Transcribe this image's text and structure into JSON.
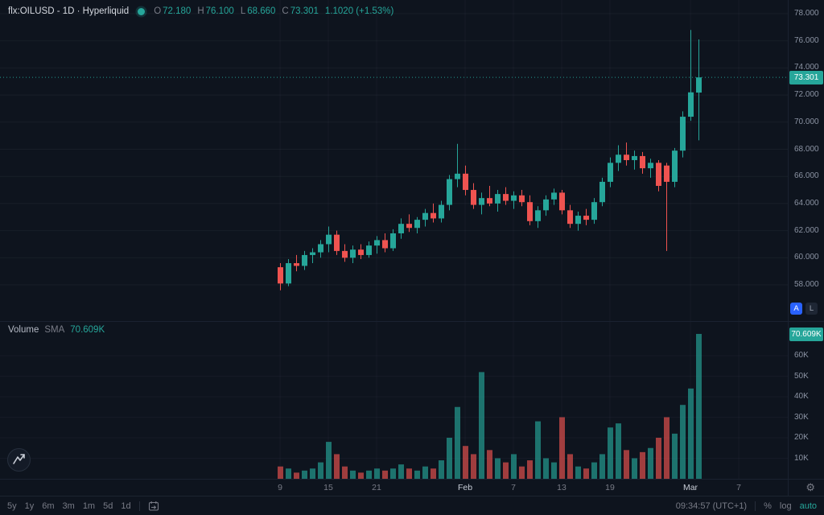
{
  "colors": {
    "up": "#26a69a",
    "down": "#ef5350",
    "accent_blue": "#2962ff",
    "text_gray": "#787b86",
    "text_light": "#d5d9e0"
  },
  "header": {
    "symbol_text": "flx:OILUSD - 1D · Hyperliquid",
    "o_label": "O",
    "o": "72.180",
    "h_label": "H",
    "h": "76.100",
    "l_label": "L",
    "l": "68.660",
    "c_label": "C",
    "c": "73.301",
    "change": "1.1020 (+1.53%)"
  },
  "volume_legend": {
    "title": "Volume",
    "sma_label": "SMA",
    "value": "70.609K"
  },
  "price_axis": {
    "labels": [
      "78.000",
      "76.000",
      "74.000",
      "72.000",
      "70.000",
      "68.000",
      "66.000",
      "64.000",
      "62.000",
      "60.000",
      "58.000"
    ],
    "badge": "73.301"
  },
  "volume_axis": {
    "labels": [
      "60K",
      "50K",
      "40K",
      "30K",
      "20K",
      "10K"
    ],
    "badge": "70.609K"
  },
  "time_axis": {
    "labels": [
      {
        "text": "9",
        "index": 0
      },
      {
        "text": "15",
        "index": 6
      },
      {
        "text": "21",
        "index": 12
      },
      {
        "text": "Feb",
        "index": 23
      },
      {
        "text": "7",
        "index": 29
      },
      {
        "text": "13",
        "index": 35
      },
      {
        "text": "19",
        "index": 41
      },
      {
        "text": "Mar",
        "index": 51
      },
      {
        "text": "7",
        "index": 57
      }
    ]
  },
  "badges": {
    "auto_scale": "A",
    "log_scale": "L"
  },
  "toolbar": {
    "ranges": [
      "5y",
      "1y",
      "6m",
      "3m",
      "1m",
      "5d",
      "1d"
    ],
    "clock": "09:34:57 (UTC+1)",
    "percent": "%",
    "log": "log",
    "auto": "auto"
  },
  "chart_data": {
    "type": "candlestick+volume",
    "title": "flx:OILUSD 1D Hyperliquid",
    "symbol": "flx:OILUSD",
    "interval": "1D",
    "exchange": "Hyperliquid",
    "price_range": [
      58,
      78
    ],
    "volume_range_k": [
      0,
      70.609
    ],
    "current_price": 73.301,
    "current_volume_k": 70.609,
    "x_start_date": "Jan 9",
    "candles_ohlc": [
      [
        59.3,
        59.6,
        57.6,
        58.1
      ],
      [
        58.1,
        59.9,
        57.9,
        59.6
      ],
      [
        59.6,
        60.2,
        59.0,
        59.4
      ],
      [
        59.4,
        60.5,
        59.1,
        60.2
      ],
      [
        60.2,
        60.7,
        59.6,
        60.4
      ],
      [
        60.4,
        61.3,
        60.0,
        61.0
      ],
      [
        61.0,
        62.3,
        60.4,
        61.7
      ],
      [
        61.7,
        62.0,
        60.2,
        60.5
      ],
      [
        60.5,
        61.0,
        59.7,
        60.0
      ],
      [
        60.0,
        60.9,
        59.6,
        60.6
      ],
      [
        60.6,
        61.0,
        59.9,
        60.2
      ],
      [
        60.2,
        61.2,
        60.0,
        60.9
      ],
      [
        60.9,
        61.6,
        60.3,
        61.3
      ],
      [
        61.3,
        61.8,
        60.4,
        60.7
      ],
      [
        60.7,
        62.1,
        60.5,
        61.8
      ],
      [
        61.8,
        62.9,
        61.4,
        62.5
      ],
      [
        62.5,
        63.2,
        61.9,
        62.2
      ],
      [
        62.2,
        63.0,
        61.8,
        62.8
      ],
      [
        62.8,
        63.6,
        62.3,
        63.3
      ],
      [
        63.3,
        64.0,
        62.6,
        62.9
      ],
      [
        62.9,
        64.2,
        62.6,
        63.9
      ],
      [
        63.9,
        66.1,
        63.5,
        65.8
      ],
      [
        65.8,
        68.4,
        65.2,
        66.2
      ],
      [
        66.2,
        66.8,
        64.6,
        65.0
      ],
      [
        65.0,
        65.5,
        63.6,
        63.9
      ],
      [
        63.9,
        64.8,
        63.2,
        64.4
      ],
      [
        64.4,
        65.3,
        63.8,
        64.0
      ],
      [
        64.0,
        65.0,
        63.4,
        64.7
      ],
      [
        64.7,
        65.2,
        63.9,
        64.2
      ],
      [
        64.2,
        64.9,
        63.6,
        64.6
      ],
      [
        64.6,
        65.0,
        63.8,
        64.1
      ],
      [
        64.1,
        64.6,
        62.4,
        62.7
      ],
      [
        62.7,
        63.8,
        62.2,
        63.5
      ],
      [
        63.5,
        64.6,
        63.1,
        64.3
      ],
      [
        64.3,
        65.1,
        63.9,
        64.8
      ],
      [
        64.8,
        65.0,
        63.2,
        63.5
      ],
      [
        63.5,
        63.9,
        62.2,
        62.5
      ],
      [
        62.5,
        63.4,
        62.0,
        63.1
      ],
      [
        63.1,
        63.6,
        62.4,
        62.8
      ],
      [
        62.8,
        64.4,
        62.5,
        64.1
      ],
      [
        64.1,
        65.9,
        63.8,
        65.6
      ],
      [
        65.6,
        67.4,
        65.2,
        67.0
      ],
      [
        67.0,
        68.3,
        66.4,
        67.6
      ],
      [
        67.6,
        68.5,
        66.8,
        67.2
      ],
      [
        67.2,
        67.9,
        66.5,
        67.5
      ],
      [
        67.5,
        67.8,
        66.2,
        66.6
      ],
      [
        66.6,
        67.3,
        65.9,
        67.0
      ],
      [
        67.0,
        67.2,
        64.9,
        65.3
      ],
      [
        66.8,
        67.0,
        60.5,
        65.6
      ],
      [
        65.6,
        68.1,
        65.2,
        67.9
      ],
      [
        67.9,
        70.8,
        67.4,
        70.4
      ],
      [
        70.4,
        76.8,
        70.1,
        72.199
      ],
      [
        72.18,
        76.1,
        68.66,
        73.301
      ]
    ],
    "volumes_k": [
      6,
      5,
      3,
      4,
      5,
      8,
      18,
      12,
      6,
      4,
      3,
      4,
      5,
      4,
      5,
      7,
      5,
      4,
      6,
      5,
      9,
      20,
      35,
      16,
      12,
      52,
      14,
      10,
      8,
      12,
      6,
      9,
      28,
      10,
      8,
      30,
      12,
      6,
      5,
      8,
      12,
      25,
      27,
      14,
      10,
      13,
      15,
      20,
      30,
      22,
      36,
      44,
      70.609
    ]
  }
}
